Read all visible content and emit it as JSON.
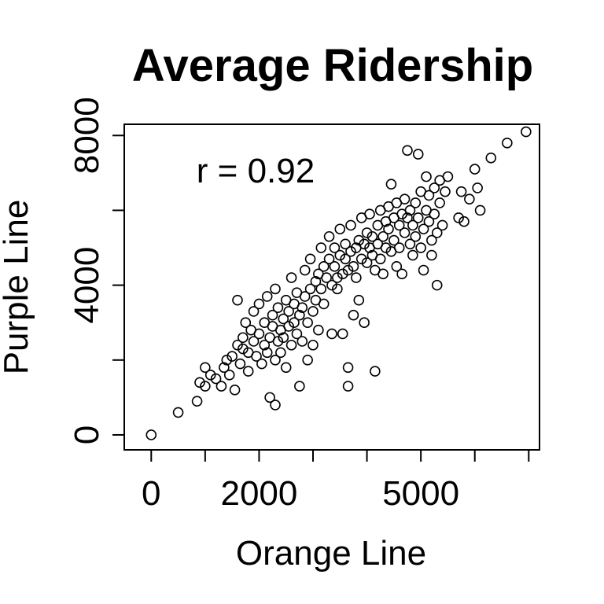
{
  "chart_data": {
    "type": "scatter",
    "title": "Average Ridership",
    "xlabel": "Orange Line",
    "ylabel": "Purple Line",
    "annotation": "r = 0.92",
    "xlim": [
      -500,
      7200
    ],
    "ylim": [
      -400,
      8300
    ],
    "x_ticks": [
      0,
      1000,
      2000,
      3000,
      4000,
      5000,
      6000,
      7000
    ],
    "x_tick_labels": [
      "0",
      "",
      "2000",
      "",
      "",
      "5000",
      "",
      ""
    ],
    "y_ticks": [
      0,
      2000,
      4000,
      6000,
      8000
    ],
    "y_tick_labels": [
      "0",
      "",
      "4000",
      "",
      "8000"
    ],
    "grid": false,
    "marker": "open-circle",
    "color": "#000000",
    "points": [
      [
        0,
        0
      ],
      [
        500,
        600
      ],
      [
        850,
        900
      ],
      [
        900,
        1400
      ],
      [
        1000,
        1300
      ],
      [
        1000,
        1800
      ],
      [
        1100,
        1600
      ],
      [
        1200,
        1500
      ],
      [
        1300,
        1300
      ],
      [
        1350,
        1800
      ],
      [
        1400,
        2000
      ],
      [
        1450,
        1600
      ],
      [
        1500,
        2100
      ],
      [
        1550,
        1200
      ],
      [
        1600,
        2400
      ],
      [
        1600,
        3600
      ],
      [
        1650,
        1900
      ],
      [
        1700,
        2600
      ],
      [
        1700,
        2300
      ],
      [
        1750,
        3000
      ],
      [
        1800,
        2200
      ],
      [
        1800,
        1700
      ],
      [
        1850,
        2800
      ],
      [
        1900,
        2500
      ],
      [
        1900,
        3300
      ],
      [
        1950,
        2100
      ],
      [
        2000,
        2700
      ],
      [
        2000,
        3500
      ],
      [
        2050,
        1900
      ],
      [
        2100,
        2400
      ],
      [
        2100,
        3000
      ],
      [
        2150,
        2200
      ],
      [
        2150,
        3700
      ],
      [
        2200,
        2600
      ],
      [
        2200,
        1000
      ],
      [
        2250,
        2900
      ],
      [
        2250,
        3200
      ],
      [
        2300,
        2000
      ],
      [
        2300,
        3900
      ],
      [
        2300,
        800
      ],
      [
        2350,
        2500
      ],
      [
        2350,
        3400
      ],
      [
        2400,
        2800
      ],
      [
        2400,
        2200
      ],
      [
        2450,
        3100
      ],
      [
        2450,
        2600
      ],
      [
        2500,
        3600
      ],
      [
        2500,
        1800
      ],
      [
        2550,
        2900
      ],
      [
        2550,
        3300
      ],
      [
        2600,
        2400
      ],
      [
        2600,
        4200
      ],
      [
        2650,
        3000
      ],
      [
        2650,
        3500
      ],
      [
        2700,
        2700
      ],
      [
        2700,
        3800
      ],
      [
        2750,
        3200
      ],
      [
        2750,
        1300
      ],
      [
        2800,
        3400
      ],
      [
        2800,
        2500
      ],
      [
        2850,
        3700
      ],
      [
        2850,
        4400
      ],
      [
        2900,
        3000
      ],
      [
        2900,
        2000
      ],
      [
        2950,
        3900
      ],
      [
        2950,
        4700
      ],
      [
        3000,
        3300
      ],
      [
        3000,
        2400
      ],
      [
        3050,
        4100
      ],
      [
        3050,
        3600
      ],
      [
        3100,
        4300
      ],
      [
        3100,
        2800
      ],
      [
        3150,
        3900
      ],
      [
        3150,
        5000
      ],
      [
        3200,
        4500
      ],
      [
        3200,
        3500
      ],
      [
        3250,
        4200
      ],
      [
        3300,
        4700
      ],
      [
        3300,
        5300
      ],
      [
        3350,
        4000
      ],
      [
        3350,
        2700
      ],
      [
        3400,
        4500
      ],
      [
        3400,
        5000
      ],
      [
        3450,
        4200
      ],
      [
        3450,
        3900
      ],
      [
        3500,
        4800
      ],
      [
        3500,
        5500
      ],
      [
        3550,
        4300
      ],
      [
        3550,
        2700
      ],
      [
        3600,
        4700
      ],
      [
        3600,
        5100
      ],
      [
        3650,
        4400
      ],
      [
        3650,
        1800
      ],
      [
        3650,
        1300
      ],
      [
        3700,
        4900
      ],
      [
        3700,
        5600
      ],
      [
        3750,
        4500
      ],
      [
        3750,
        3200
      ],
      [
        3800,
        5000
      ],
      [
        3800,
        4200
      ],
      [
        3850,
        5200
      ],
      [
        3850,
        3600
      ],
      [
        3900,
        4700
      ],
      [
        3900,
        5800
      ],
      [
        3950,
        5100
      ],
      [
        3950,
        3000
      ],
      [
        4000,
        4600
      ],
      [
        4000,
        5400
      ],
      [
        4050,
        5000
      ],
      [
        4050,
        5900
      ],
      [
        4100,
        4800
      ],
      [
        4100,
        5300
      ],
      [
        4150,
        4400
      ],
      [
        4150,
        1700
      ],
      [
        4200,
        5100
      ],
      [
        4200,
        5600
      ],
      [
        4250,
        4700
      ],
      [
        4250,
        6000
      ],
      [
        4300,
        5300
      ],
      [
        4300,
        4300
      ],
      [
        4350,
        5700
      ],
      [
        4350,
        5000
      ],
      [
        4400,
        5500
      ],
      [
        4400,
        6100
      ],
      [
        4450,
        4900
      ],
      [
        4450,
        6700
      ],
      [
        4500,
        5800
      ],
      [
        4500,
        5200
      ],
      [
        4550,
        4500
      ],
      [
        4550,
        6200
      ],
      [
        4600,
        5600
      ],
      [
        4600,
        5000
      ],
      [
        4650,
        5900
      ],
      [
        4650,
        4300
      ],
      [
        4700,
        6300
      ],
      [
        4700,
        5400
      ],
      [
        4750,
        7600
      ],
      [
        4750,
        5800
      ],
      [
        4800,
        5100
      ],
      [
        4800,
        6000
      ],
      [
        4850,
        5600
      ],
      [
        4850,
        4800
      ],
      [
        4900,
        6200
      ],
      [
        4900,
        5300
      ],
      [
        4950,
        7500
      ],
      [
        4950,
        5800
      ],
      [
        5000,
        6500
      ],
      [
        5000,
        5000
      ],
      [
        5050,
        5500
      ],
      [
        5050,
        4400
      ],
      [
        5100,
        6000
      ],
      [
        5100,
        6900
      ],
      [
        5150,
        5700
      ],
      [
        5150,
        6400
      ],
      [
        5200,
        5200
      ],
      [
        5200,
        4800
      ],
      [
        5250,
        6600
      ],
      [
        5250,
        5900
      ],
      [
        5300,
        5400
      ],
      [
        5300,
        4000
      ],
      [
        5350,
        6200
      ],
      [
        5350,
        6800
      ],
      [
        5400,
        5600
      ],
      [
        5450,
        6500
      ],
      [
        5500,
        6900
      ],
      [
        5700,
        5800
      ],
      [
        5750,
        6500
      ],
      [
        5800,
        5700
      ],
      [
        5900,
        6300
      ],
      [
        6000,
        7100
      ],
      [
        6050,
        6600
      ],
      [
        6100,
        6000
      ],
      [
        6300,
        7400
      ],
      [
        6600,
        7800
      ],
      [
        6950,
        8100
      ]
    ]
  }
}
